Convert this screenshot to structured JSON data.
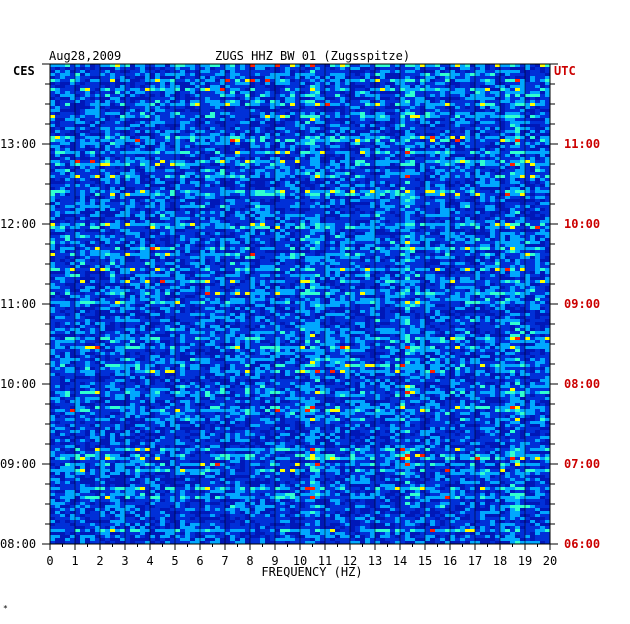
{
  "header": {
    "date": "Aug28,2009",
    "station": "ZUGS HHZ BW 01 (Zugsspitze)",
    "left_timezone": "CES",
    "right_timezone": "UTC"
  },
  "footnote": "*",
  "chart_data": {
    "type": "heatmap",
    "title": "ZUGS HHZ BW 01 (Zugsspitze)",
    "date": "Aug28,2009",
    "xlabel": "FREQUENCY (HZ)",
    "xlim": [
      0,
      20
    ],
    "x_ticks": [
      "0",
      "1",
      "2",
      "3",
      "4",
      "5",
      "6",
      "7",
      "8",
      "9",
      "10",
      "11",
      "12",
      "13",
      "14",
      "15",
      "16",
      "17",
      "18",
      "19",
      "20"
    ],
    "y_left_label": "CES",
    "y_left_ticks": [
      "13:00",
      "12:00",
      "11:00",
      "10:00",
      "09:00",
      "08:00"
    ],
    "y_right_label": "UTC",
    "y_right_ticks": [
      "11:00",
      "10:00",
      "09:00",
      "08:00",
      "07:00",
      "06:00"
    ],
    "time_range_ces": [
      "08:00",
      "14:00"
    ],
    "colors": {
      "background": "#0018b8",
      "low": "#0030d8",
      "mid": "#00a8ff",
      "high": "#30ffd0",
      "peak": "#ffff00",
      "max": "#ff2000",
      "utc_text": "#cc0000"
    },
    "persistent_bands_hz": [
      10.5,
      14.3,
      18.6
    ],
    "grid": true
  }
}
